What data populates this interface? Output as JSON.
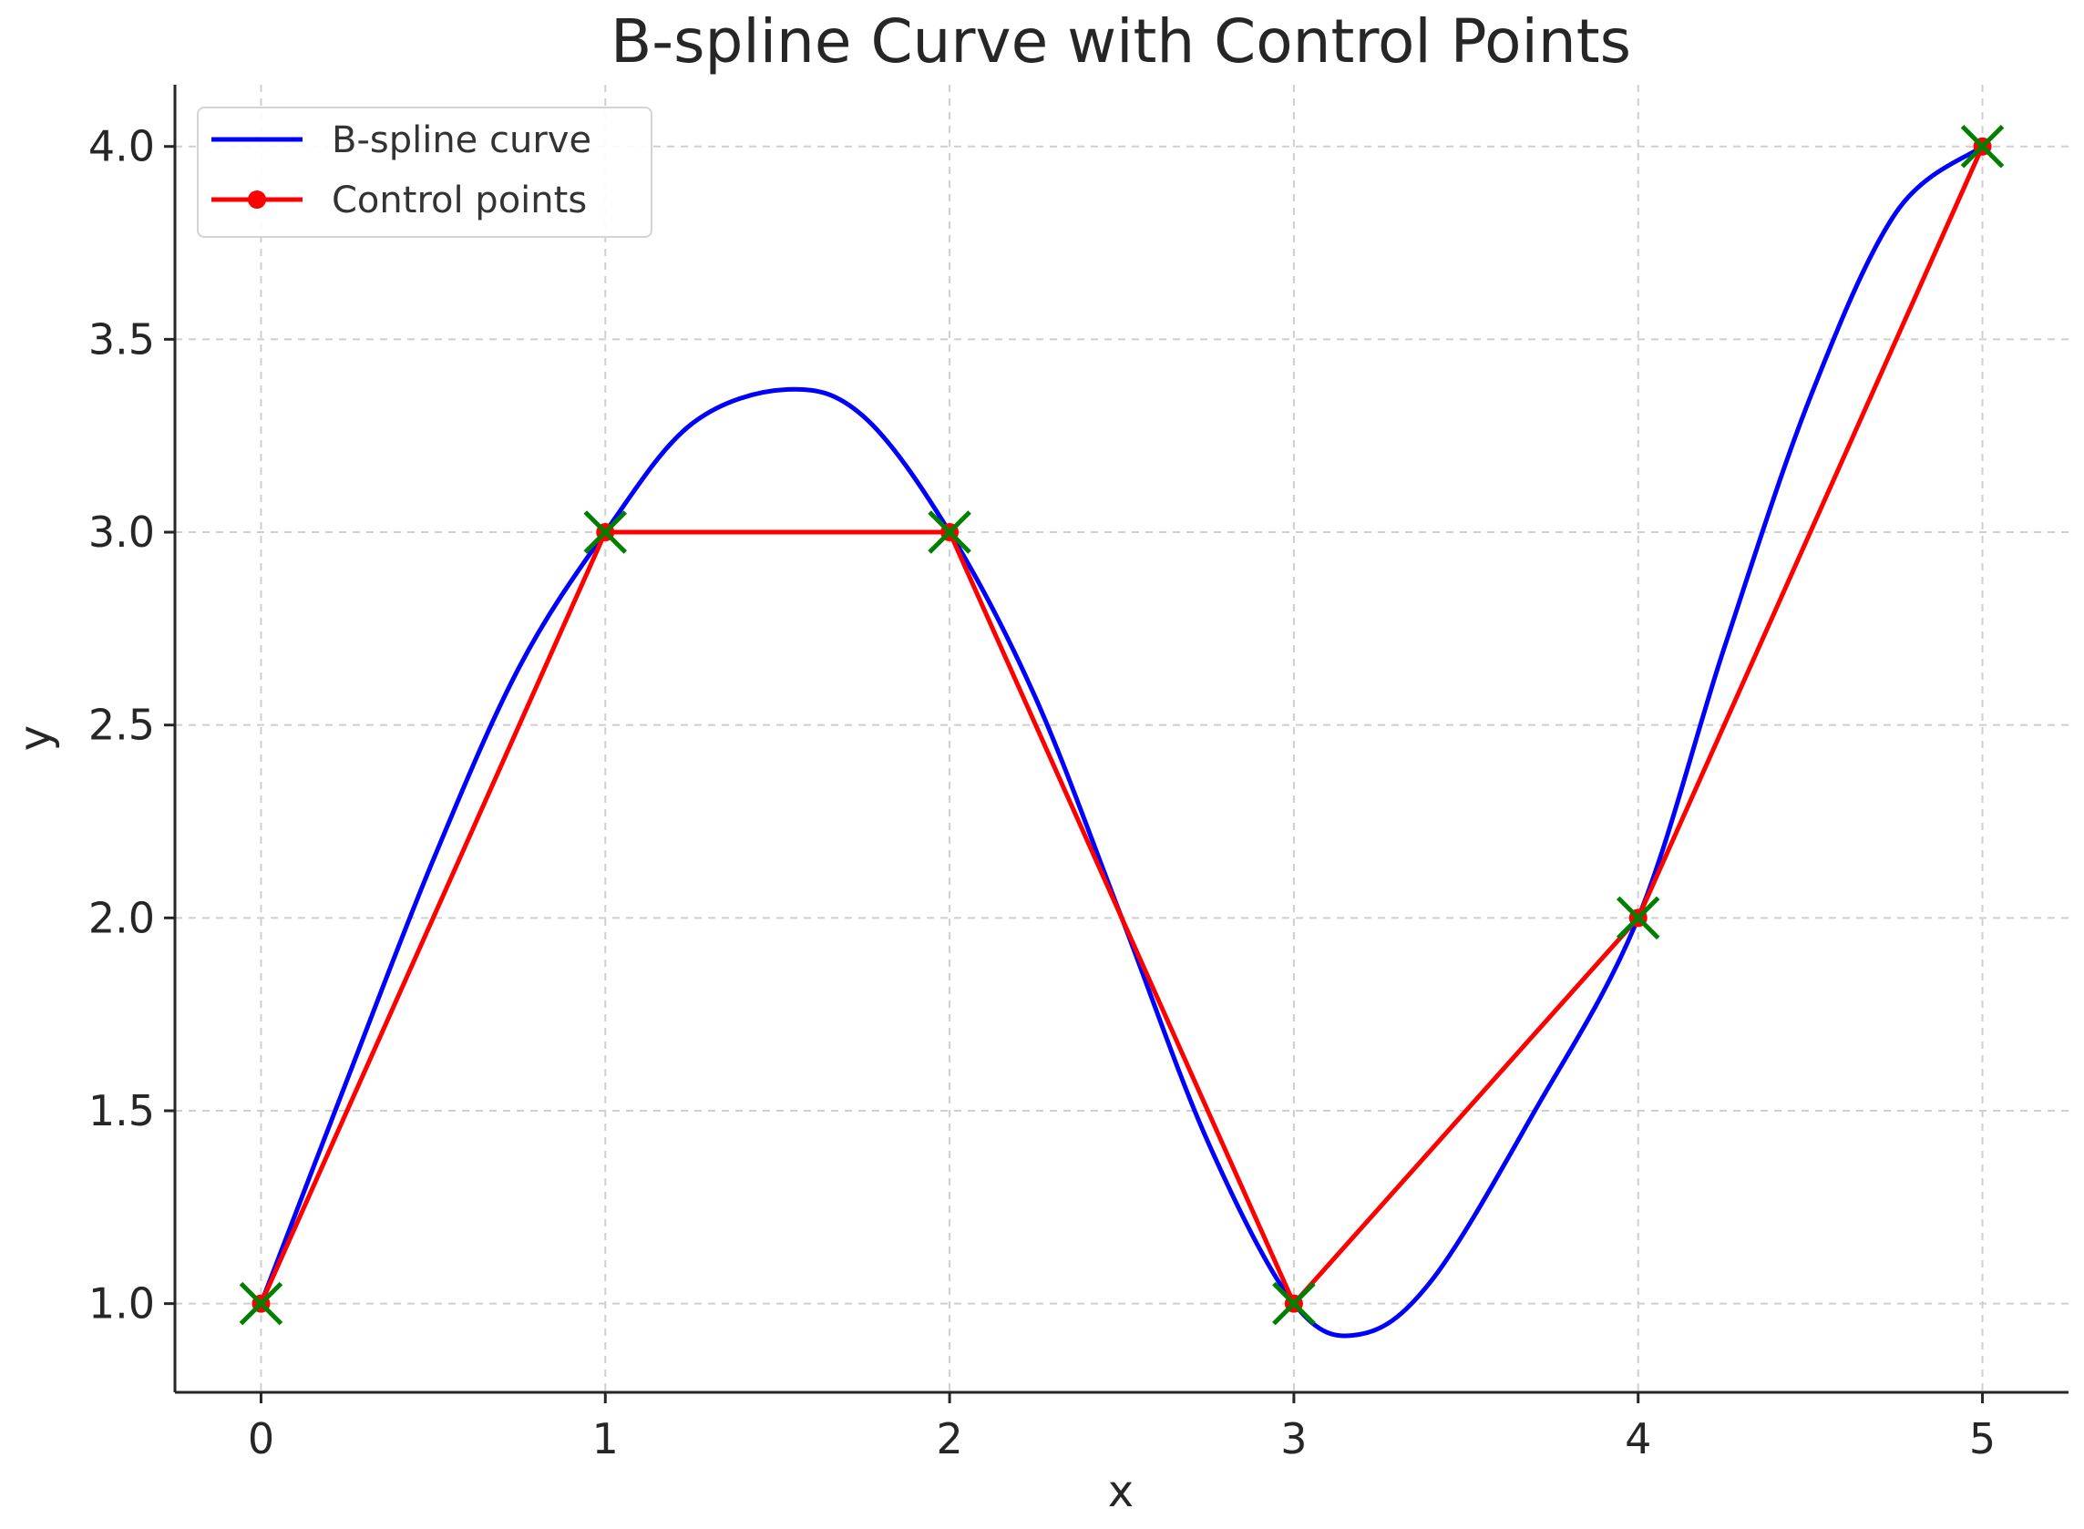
{
  "chart_data": {
    "type": "line",
    "title": "B-spline Curve with Control Points",
    "xlabel": "x",
    "ylabel": "y",
    "xlim": [
      -0.25,
      5.25
    ],
    "ylim": [
      0.77,
      4.16
    ],
    "xticks": [
      "0",
      "1",
      "2",
      "3",
      "4",
      "5"
    ],
    "yticks": [
      "1.0",
      "1.5",
      "2.0",
      "2.5",
      "3.0",
      "3.5",
      "4.0"
    ],
    "grid": true,
    "legend_position": "top-left",
    "series": [
      {
        "name": "B-spline curve",
        "color": "#0000ff",
        "style": "line",
        "x": [
          0,
          0.25,
          0.5,
          0.75,
          1.0,
          1.25,
          1.53,
          1.75,
          2.0,
          2.25,
          2.5,
          2.75,
          3.0,
          3.19,
          3.4,
          3.7,
          4.0,
          4.25,
          4.5,
          4.75,
          5.0
        ],
        "y": [
          1.0,
          1.58,
          2.15,
          2.65,
          3.0,
          3.28,
          3.37,
          3.3,
          3.0,
          2.57,
          2.0,
          1.42,
          1.0,
          0.92,
          1.06,
          1.5,
          2.0,
          2.7,
          3.35,
          3.83,
          4.0
        ]
      },
      {
        "name": "Control points",
        "color": "#ff0000",
        "style": "line-with-markers",
        "x": [
          0,
          1,
          2,
          3,
          4,
          5
        ],
        "y": [
          1,
          3,
          3,
          1,
          2,
          4
        ]
      }
    ],
    "marker_overlay": {
      "color": "#008000",
      "symbol": "x",
      "x": [
        0,
        1,
        2,
        3,
        4,
        5
      ],
      "y": [
        1,
        3,
        3,
        1,
        2,
        4
      ]
    }
  }
}
